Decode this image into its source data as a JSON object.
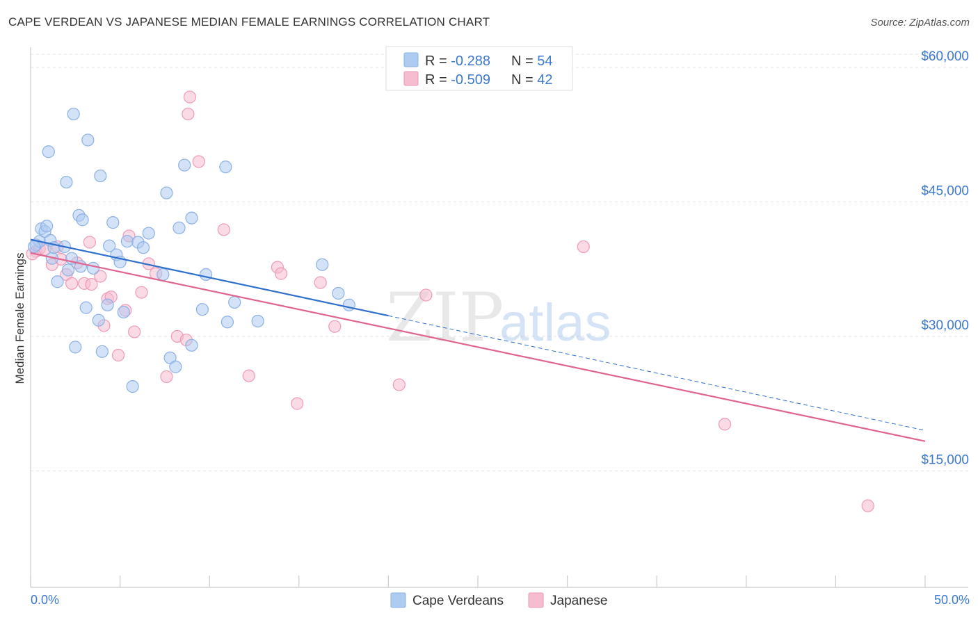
{
  "title": "CAPE VERDEAN VS JAPANESE MEDIAN FEMALE EARNINGS CORRELATION CHART",
  "source": "Source: ZipAtlas.com",
  "watermark": {
    "zip": "ZIP",
    "atlas": "atlas"
  },
  "colors": {
    "blue_fill": "#aecbf0",
    "blue_stroke": "#8ab1e6",
    "blue_line": "#2f6fcc",
    "pink_fill": "#f6bcd0",
    "pink_stroke": "#ee9ab7",
    "pink_line": "#e0648e",
    "tick_color": "#3b78d0",
    "grid": "#e3e3e3"
  },
  "legend": {
    "r_label": "R = ",
    "n_label": "N = ",
    "rows": [
      {
        "r": "-0.288",
        "n": "54"
      },
      {
        "r": "-0.509",
        "n": "42"
      }
    ]
  },
  "chart_data": {
    "type": "scatter",
    "title": "CAPE VERDEAN VS JAPANESE MEDIAN FEMALE EARNINGS CORRELATION CHART",
    "xlabel": "",
    "ylabel": "Median Female Earnings",
    "xlim": [
      0,
      50
    ],
    "ylim": [
      2000,
      63000
    ],
    "x_tick_labels": [
      "0.0%",
      "50.0%"
    ],
    "y_ticks": [
      15000,
      30000,
      45000,
      60000
    ],
    "y_tick_labels": [
      "$15,000",
      "$30,000",
      "$45,000",
      "$60,000"
    ],
    "series": [
      {
        "name": "Cape Verdeans",
        "r": -0.288,
        "n": 54,
        "trend": {
          "x0": 0,
          "y0": 40800,
          "x1": 20,
          "y1": 32300,
          "dash_x1": 50,
          "dash_y1": 19500
        },
        "points": [
          [
            0.3,
            40200
          ],
          [
            0.5,
            40600
          ],
          [
            0.6,
            42000
          ],
          [
            0.8,
            41700
          ],
          [
            0.9,
            42300
          ],
          [
            1.1,
            40700
          ],
          [
            1.2,
            38700
          ],
          [
            1.3,
            39900
          ],
          [
            1.5,
            36100
          ],
          [
            1.9,
            40000
          ],
          [
            2.1,
            37400
          ],
          [
            2.3,
            38700
          ],
          [
            2.7,
            43500
          ],
          [
            1.0,
            50600
          ],
          [
            2.0,
            47200
          ],
          [
            2.4,
            54800
          ],
          [
            2.5,
            28800
          ],
          [
            2.8,
            37800
          ],
          [
            2.9,
            43000
          ],
          [
            3.1,
            33200
          ],
          [
            3.2,
            51900
          ],
          [
            3.5,
            37600
          ],
          [
            3.8,
            31800
          ],
          [
            3.9,
            47900
          ],
          [
            4.0,
            28300
          ],
          [
            4.3,
            33500
          ],
          [
            4.4,
            40100
          ],
          [
            4.6,
            42700
          ],
          [
            4.8,
            39100
          ],
          [
            5.0,
            38300
          ],
          [
            5.2,
            32700
          ],
          [
            5.4,
            40600
          ],
          [
            5.7,
            24400
          ],
          [
            6.0,
            40500
          ],
          [
            6.3,
            39900
          ],
          [
            6.6,
            41500
          ],
          [
            7.4,
            36900
          ],
          [
            7.6,
            46000
          ],
          [
            7.8,
            27600
          ],
          [
            8.1,
            26600
          ],
          [
            8.3,
            42100
          ],
          [
            8.6,
            49100
          ],
          [
            9.0,
            43200
          ],
          [
            9.0,
            29000
          ],
          [
            9.6,
            33000
          ],
          [
            9.8,
            36900
          ],
          [
            11.0,
            31600
          ],
          [
            10.9,
            48900
          ],
          [
            11.4,
            33800
          ],
          [
            12.7,
            31700
          ],
          [
            16.3,
            38000
          ],
          [
            17.2,
            34800
          ],
          [
            17.8,
            33500
          ],
          [
            0.2,
            40000
          ]
        ]
      },
      {
        "name": "Japanese",
        "r": -0.509,
        "n": 42,
        "trend": {
          "x0": 0,
          "y0": 39300,
          "x1": 50,
          "y1": 18300
        },
        "points": [
          [
            0.3,
            39500
          ],
          [
            0.5,
            39800
          ],
          [
            0.8,
            39700
          ],
          [
            1.2,
            38000
          ],
          [
            1.7,
            38600
          ],
          [
            2.0,
            36900
          ],
          [
            2.3,
            35900
          ],
          [
            2.6,
            38200
          ],
          [
            3.0,
            35900
          ],
          [
            3.3,
            40500
          ],
          [
            3.4,
            35800
          ],
          [
            3.9,
            36700
          ],
          [
            4.1,
            31200
          ],
          [
            4.3,
            34200
          ],
          [
            4.5,
            34400
          ],
          [
            4.9,
            27900
          ],
          [
            5.3,
            32900
          ],
          [
            5.5,
            41200
          ],
          [
            5.8,
            30500
          ],
          [
            6.2,
            34900
          ],
          [
            6.6,
            38100
          ],
          [
            7.0,
            37000
          ],
          [
            7.6,
            25500
          ],
          [
            8.2,
            30000
          ],
          [
            8.7,
            29600
          ],
          [
            8.9,
            56700
          ],
          [
            8.8,
            54800
          ],
          [
            9.4,
            49500
          ],
          [
            10.8,
            41900
          ],
          [
            12.2,
            25600
          ],
          [
            13.8,
            37700
          ],
          [
            14.0,
            37000
          ],
          [
            14.9,
            22500
          ],
          [
            16.2,
            36000
          ],
          [
            17.0,
            31100
          ],
          [
            20.6,
            24600
          ],
          [
            22.1,
            34600
          ],
          [
            30.9,
            40000
          ],
          [
            38.8,
            20200
          ],
          [
            46.8,
            11100
          ],
          [
            0.1,
            39200
          ],
          [
            1.5,
            40000
          ]
        ]
      }
    ]
  }
}
